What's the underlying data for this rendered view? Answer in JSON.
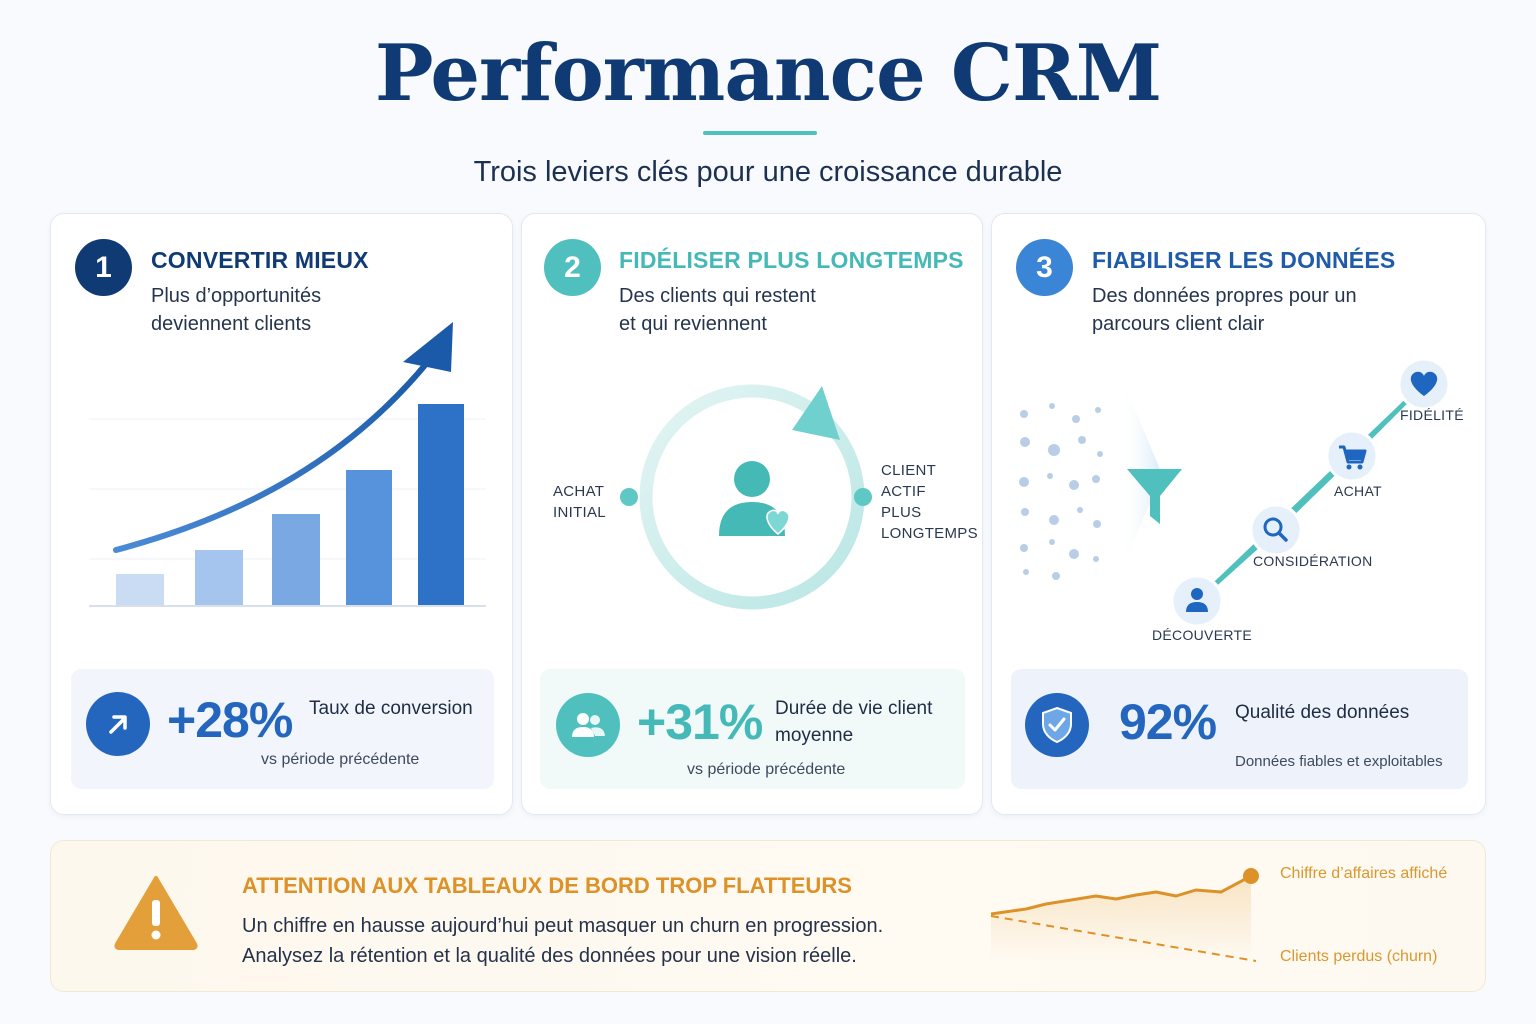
{
  "header": {
    "title": "Performance CRM",
    "subtitle": "Trois leviers clés pour une croissance durable"
  },
  "colors": {
    "navy": "#0f3a73",
    "teal": "#4fc0be",
    "blue": "#2f74c8",
    "orange": "#dc9228"
  },
  "cards": [
    {
      "number": "1",
      "title": "CONVERTIR MIEUX",
      "desc_lines": [
        "Plus d’opportunités",
        "deviennent clients"
      ],
      "stat": {
        "icon": "arrow-up-icon",
        "value": "+28%",
        "label": "Taux de conversion",
        "sub": "vs période précédente"
      }
    },
    {
      "number": "2",
      "title": "FIDÉLISER PLUS LONGTEMPS",
      "desc_lines": [
        "Des clients qui restent",
        "et qui reviennent"
      ],
      "cycle": {
        "left_label_lines": [
          "ACHAT",
          "INITIAL"
        ],
        "right_label_lines": [
          "CLIENT",
          "ACTIF",
          "PLUS",
          "LONGTEMPS"
        ]
      },
      "stat": {
        "icon": "users-icon",
        "value": "+31%",
        "label_lines": [
          "Durée de vie client",
          "moyenne"
        ],
        "sub": "vs période précédente"
      }
    },
    {
      "number": "3",
      "title": "FIABILISER LES DONNÉES",
      "desc_lines": [
        "Des données propres pour un",
        "parcours client clair"
      ],
      "journey": {
        "steps": [
          "DÉCOUVERTE",
          "CONSIDÉRATION",
          "ACHAT",
          "FIDÉLITÉ"
        ],
        "icons": [
          "user-icon",
          "search-icon",
          "cart-icon",
          "heart-icon"
        ]
      },
      "stat": {
        "icon": "shield-check-icon",
        "value": "92%",
        "label": "Qualité des données",
        "sub": "Données fiables et exploitables"
      }
    }
  ],
  "warning": {
    "icon": "warning-icon",
    "title": "ATTENTION AUX TABLEAUX DE BORD TROP FLATTEURS",
    "lines": [
      "Un chiffre en hausse aujourd’hui peut masquer un churn en progression.",
      "Analysez la rétention et la qualité des données pour une vision réelle."
    ],
    "legend_revenue": "Chiffre d’affaires affiché",
    "legend_churn": "Clients perdus (churn)"
  }
}
